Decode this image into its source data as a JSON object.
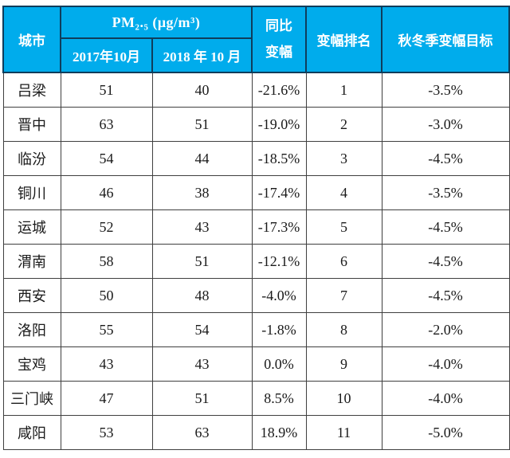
{
  "colors": {
    "header_bg": "#00ACEC",
    "header_text": "#FFFFFF",
    "header_border": "#0F3D5C",
    "body_border": "#3F3F3F",
    "body_text": "#1A1A1A"
  },
  "chart_data": {
    "type": "table",
    "title": "",
    "header": {
      "city": "城市",
      "pm_group": "PM₂.₅ (μg/m³)",
      "col_2017": "2017年10月",
      "col_2018": "2018 年 10 月",
      "yoy_display": "同比\n变幅",
      "rank": "变幅排名",
      "target": "秋冬季变幅目标"
    },
    "rows": [
      {
        "city": "吕梁",
        "pm_oct2017": "51",
        "pm_oct2018": "40",
        "yoy_change": "-21.6%",
        "rank": "1",
        "target": "-3.5%"
      },
      {
        "city": "晋中",
        "pm_oct2017": "63",
        "pm_oct2018": "51",
        "yoy_change": "-19.0%",
        "rank": "2",
        "target": "-3.0%"
      },
      {
        "city": "临汾",
        "pm_oct2017": "54",
        "pm_oct2018": "44",
        "yoy_change": "-18.5%",
        "rank": "3",
        "target": "-4.5%"
      },
      {
        "city": "铜川",
        "pm_oct2017": "46",
        "pm_oct2018": "38",
        "yoy_change": "-17.4%",
        "rank": "4",
        "target": "-3.5%"
      },
      {
        "city": "运城",
        "pm_oct2017": "52",
        "pm_oct2018": "43",
        "yoy_change": "-17.3%",
        "rank": "5",
        "target": "-4.5%"
      },
      {
        "city": "渭南",
        "pm_oct2017": "58",
        "pm_oct2018": "51",
        "yoy_change": "-12.1%",
        "rank": "6",
        "target": "-4.5%"
      },
      {
        "city": "西安",
        "pm_oct2017": "50",
        "pm_oct2018": "48",
        "yoy_change": "-4.0%",
        "rank": "7",
        "target": "-4.5%"
      },
      {
        "city": "洛阳",
        "pm_oct2017": "55",
        "pm_oct2018": "54",
        "yoy_change": "-1.8%",
        "rank": "8",
        "target": "-2.0%"
      },
      {
        "city": "宝鸡",
        "pm_oct2017": "43",
        "pm_oct2018": "43",
        "yoy_change": "0.0%",
        "rank": "9",
        "target": "-4.0%"
      },
      {
        "city": "三门峡",
        "pm_oct2017": "47",
        "pm_oct2018": "51",
        "yoy_change": "8.5%",
        "rank": "10",
        "target": "-4.0%"
      },
      {
        "city": "咸阳",
        "pm_oct2017": "53",
        "pm_oct2018": "63",
        "yoy_change": "18.9%",
        "rank": "11",
        "target": "-5.0%"
      }
    ]
  }
}
